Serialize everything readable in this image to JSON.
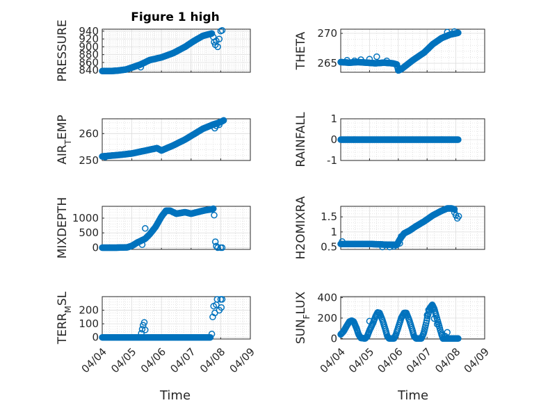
{
  "figure_title": "Figure 1 high",
  "colors": {
    "marker": "#0072bd",
    "axis": "#262626",
    "grid": "#dcdcdc"
  },
  "x_axis_label": "Time",
  "chart_data": [
    {
      "id": "pressure",
      "type": "scatter",
      "ylabel": "PRESSURE",
      "xlim": [
        0,
        5
      ],
      "ylim": [
        835,
        945
      ],
      "yticks": [
        840,
        860,
        880,
        900,
        920,
        940
      ],
      "ytick_labels": [
        "840",
        "860",
        "880",
        "900",
        "920",
        "940"
      ],
      "xticks": [
        0,
        1,
        2,
        3,
        4,
        5
      ],
      "xtick_labels": [],
      "curve": [
        [
          0,
          838
        ],
        [
          0.25,
          838
        ],
        [
          0.5,
          839
        ],
        [
          0.8,
          842
        ],
        [
          1.0,
          847
        ],
        [
          1.3,
          855
        ],
        [
          1.6,
          866
        ],
        [
          2.0,
          873
        ],
        [
          2.4,
          884
        ],
        [
          2.8,
          900
        ],
        [
          3.1,
          915
        ],
        [
          3.4,
          928
        ],
        [
          3.6,
          932
        ],
        [
          3.7,
          934
        ]
      ],
      "extra": [
        [
          1.3,
          848
        ],
        [
          3.75,
          925
        ],
        [
          3.78,
          912
        ],
        [
          3.82,
          905
        ],
        [
          3.85,
          915
        ],
        [
          3.9,
          900
        ],
        [
          3.95,
          920
        ],
        [
          4.0,
          940
        ],
        [
          4.05,
          942
        ]
      ]
    },
    {
      "id": "theta",
      "type": "scatter",
      "ylabel": "THETA",
      "xlim": [
        0,
        5
      ],
      "ylim": [
        263.5,
        270.7
      ],
      "yticks": [
        265,
        270
      ],
      "ytick_labels": [
        "265",
        "270"
      ],
      "xticks": [
        0,
        1,
        2,
        3,
        4,
        5
      ],
      "xtick_labels": [],
      "curve": [
        [
          0,
          265.2
        ],
        [
          0.3,
          265.1
        ],
        [
          0.6,
          265.2
        ],
        [
          0.9,
          265.1
        ],
        [
          1.2,
          265.0
        ],
        [
          1.5,
          265.1
        ],
        [
          1.8,
          265.0
        ],
        [
          1.95,
          264.8
        ],
        [
          2.0,
          263.8
        ],
        [
          2.1,
          264.0
        ],
        [
          2.5,
          265.5
        ],
        [
          2.9,
          266.8
        ],
        [
          3.2,
          268.2
        ],
        [
          3.5,
          269.2
        ],
        [
          3.8,
          269.8
        ],
        [
          4.0,
          270.0
        ],
        [
          4.08,
          270.1
        ]
      ],
      "extra": [
        [
          0.22,
          265.5
        ],
        [
          0.48,
          265.4
        ],
        [
          0.7,
          265.6
        ],
        [
          1.0,
          265.7
        ],
        [
          1.25,
          266.1
        ],
        [
          1.6,
          265.4
        ],
        [
          3.7,
          270.2
        ],
        [
          3.95,
          270.3
        ]
      ]
    },
    {
      "id": "air_temp",
      "type": "scatter",
      "ylabel": "AIR_TEMP",
      "ylabel_main": "AIR",
      "ylabel_sub": "T",
      "ylabel_rest": "EMP",
      "xlim": [
        0,
        5
      ],
      "ylim": [
        250,
        265.5
      ],
      "yticks": [
        250,
        260
      ],
      "ytick_labels": [
        "250",
        "260"
      ],
      "xticks": [
        0,
        1,
        2,
        3,
        4,
        5
      ],
      "xtick_labels": [],
      "curve": [
        [
          0,
          251.5
        ],
        [
          0.3,
          251.8
        ],
        [
          0.6,
          252.1
        ],
        [
          1.0,
          252.6
        ],
        [
          1.3,
          253.3
        ],
        [
          1.6,
          254.0
        ],
        [
          1.85,
          254.6
        ],
        [
          2.0,
          253.7
        ],
        [
          2.1,
          254.2
        ],
        [
          2.4,
          255.6
        ],
        [
          2.8,
          257.8
        ],
        [
          3.1,
          259.8
        ],
        [
          3.4,
          261.8
        ],
        [
          3.6,
          262.7
        ],
        [
          3.75,
          263.4
        ],
        [
          3.9,
          263.9
        ],
        [
          4.05,
          264.6
        ],
        [
          4.1,
          264.9
        ]
      ],
      "extra": [
        [
          0.1,
          251.3
        ],
        [
          3.8,
          262.0
        ],
        [
          3.85,
          262.9
        ],
        [
          3.95,
          263.3
        ]
      ]
    },
    {
      "id": "rainfall",
      "type": "scatter",
      "ylabel": "RAINFALL",
      "xlim": [
        0,
        5
      ],
      "ylim": [
        -1,
        1
      ],
      "yticks": [
        -1,
        0,
        1
      ],
      "ytick_labels": [
        "-1",
        "0",
        "1"
      ],
      "xticks": [
        0,
        1,
        2,
        3,
        4,
        5
      ],
      "xtick_labels": [],
      "curve": [
        [
          0,
          0
        ],
        [
          4.08,
          0
        ]
      ],
      "extra": []
    },
    {
      "id": "mixdepth",
      "type": "scatter",
      "ylabel": "MIXDEPTH",
      "xlim": [
        0,
        5
      ],
      "ylim": [
        -60,
        1400
      ],
      "yticks": [
        0,
        500,
        1000
      ],
      "ytick_labels": [
        "0",
        "500",
        "1000"
      ],
      "xticks": [
        0,
        1,
        2,
        3,
        4,
        5
      ],
      "xtick_labels": [],
      "curve": [
        [
          0,
          0
        ],
        [
          0.5,
          0
        ],
        [
          0.85,
          10
        ],
        [
          1.0,
          60
        ],
        [
          1.2,
          180
        ],
        [
          1.45,
          300
        ],
        [
          1.6,
          450
        ],
        [
          1.8,
          700
        ],
        [
          2.0,
          1050
        ],
        [
          2.15,
          1250
        ],
        [
          2.3,
          1250
        ],
        [
          2.5,
          1150
        ],
        [
          2.8,
          1200
        ],
        [
          3.0,
          1150
        ],
        [
          3.2,
          1200
        ],
        [
          3.4,
          1250
        ],
        [
          3.55,
          1280
        ],
        [
          3.7,
          1300
        ],
        [
          3.75,
          1320
        ]
      ],
      "extra": [
        [
          1.35,
          100
        ],
        [
          1.45,
          650
        ],
        [
          3.78,
          1100
        ],
        [
          3.82,
          200
        ],
        [
          3.85,
          50
        ],
        [
          3.9,
          0
        ],
        [
          4.0,
          0
        ],
        [
          4.05,
          0
        ]
      ]
    },
    {
      "id": "h2omixra",
      "type": "scatter",
      "ylabel": "H2OMIXRA",
      "xlim": [
        0,
        5
      ],
      "ylim": [
        0.42,
        1.85
      ],
      "yticks": [
        0.5,
        1,
        1.5
      ],
      "ytick_labels": [
        "0.5",
        "1",
        "1.5"
      ],
      "xticks": [
        0,
        1,
        2,
        3,
        4,
        5
      ],
      "xtick_labels": [],
      "curve": [
        [
          0,
          0.6
        ],
        [
          0.5,
          0.6
        ],
        [
          1.0,
          0.6
        ],
        [
          1.5,
          0.58
        ],
        [
          1.95,
          0.57
        ],
        [
          2.05,
          0.75
        ],
        [
          2.2,
          0.95
        ],
        [
          2.4,
          1.05
        ],
        [
          2.6,
          1.18
        ],
        [
          2.9,
          1.35
        ],
        [
          3.2,
          1.55
        ],
        [
          3.5,
          1.7
        ],
        [
          3.7,
          1.78
        ],
        [
          3.85,
          1.78
        ],
        [
          3.95,
          1.75
        ]
      ],
      "extra": [
        [
          0.05,
          0.68
        ],
        [
          1.45,
          0.5
        ],
        [
          1.7,
          0.5
        ],
        [
          1.85,
          0.52
        ],
        [
          2.05,
          0.62
        ],
        [
          2.1,
          0.85
        ],
        [
          3.95,
          1.65
        ],
        [
          4.0,
          1.55
        ],
        [
          4.05,
          1.45
        ],
        [
          4.1,
          1.52
        ]
      ]
    },
    {
      "id": "terr_msl",
      "type": "scatter",
      "ylabel": "TERR_MSL",
      "ylabel_main": "TERR",
      "ylabel_sub": "M",
      "ylabel_rest": "SL",
      "xlim": [
        0,
        5
      ],
      "ylim": [
        -12,
        300
      ],
      "yticks": [
        0,
        100,
        200
      ],
      "ytick_labels": [
        "0",
        "100",
        "200"
      ],
      "xticks": [
        0,
        1,
        2,
        3,
        4,
        5
      ],
      "xtick_labels": [
        "04/04",
        "04/05",
        "04/06",
        "04/07",
        "04/08",
        "04/09"
      ],
      "curve": [
        [
          0,
          0
        ],
        [
          3.65,
          0
        ]
      ],
      "extra": [
        [
          1.32,
          30
        ],
        [
          1.35,
          60
        ],
        [
          1.38,
          90
        ],
        [
          1.42,
          110
        ],
        [
          1.45,
          55
        ],
        [
          3.7,
          25
        ],
        [
          3.73,
          150
        ],
        [
          3.76,
          230
        ],
        [
          3.8,
          180
        ],
        [
          3.85,
          240
        ],
        [
          3.88,
          280
        ],
        [
          3.95,
          200
        ],
        [
          4.0,
          280
        ],
        [
          4.02,
          220
        ],
        [
          4.05,
          280
        ]
      ]
    },
    {
      "id": "sun_flux",
      "type": "scatter",
      "ylabel": "SUN_FLUX",
      "ylabel_main": "SUN",
      "ylabel_sub": "F",
      "ylabel_rest": "LUX",
      "xlim": [
        0,
        5
      ],
      "ylim": [
        -5,
        410
      ],
      "yticks": [
        0,
        200,
        400
      ],
      "ytick_labels": [
        "0",
        "200",
        "400"
      ],
      "xticks": [
        0,
        1,
        2,
        3,
        4,
        5
      ],
      "xtick_labels": [
        "04/04",
        "04/05",
        "04/06",
        "04/07",
        "04/08",
        "04/09"
      ],
      "curve": [
        [
          0,
          40
        ],
        [
          0.1,
          70
        ],
        [
          0.2,
          120
        ],
        [
          0.3,
          165
        ],
        [
          0.38,
          175
        ],
        [
          0.45,
          165
        ],
        [
          0.55,
          100
        ],
        [
          0.62,
          40
        ],
        [
          0.7,
          5
        ],
        [
          0.85,
          0
        ],
        [
          0.92,
          20
        ],
        [
          1.0,
          80
        ],
        [
          1.12,
          150
        ],
        [
          1.2,
          210
        ],
        [
          1.28,
          255
        ],
        [
          1.35,
          250
        ],
        [
          1.45,
          180
        ],
        [
          1.55,
          90
        ],
        [
          1.62,
          20
        ],
        [
          1.68,
          0
        ],
        [
          1.85,
          0
        ],
        [
          1.92,
          40
        ],
        [
          2.0,
          110
        ],
        [
          2.1,
          200
        ],
        [
          2.2,
          250
        ],
        [
          2.28,
          250
        ],
        [
          2.38,
          180
        ],
        [
          2.48,
          90
        ],
        [
          2.55,
          20
        ],
        [
          2.62,
          0
        ],
        [
          2.8,
          0
        ],
        [
          2.88,
          50
        ],
        [
          2.95,
          130
        ],
        [
          3.02,
          220
        ],
        [
          3.1,
          300
        ],
        [
          3.18,
          330
        ],
        [
          3.25,
          290
        ],
        [
          3.32,
          220
        ],
        [
          3.42,
          120
        ],
        [
          3.5,
          40
        ],
        [
          3.55,
          0
        ],
        [
          4.08,
          0
        ]
      ],
      "extra": [
        [
          1.0,
          170
        ],
        [
          3.0,
          230
        ],
        [
          3.05,
          280
        ],
        [
          3.25,
          195
        ],
        [
          3.35,
          140
        ],
        [
          3.62,
          25
        ],
        [
          3.7,
          60
        ]
      ]
    }
  ]
}
